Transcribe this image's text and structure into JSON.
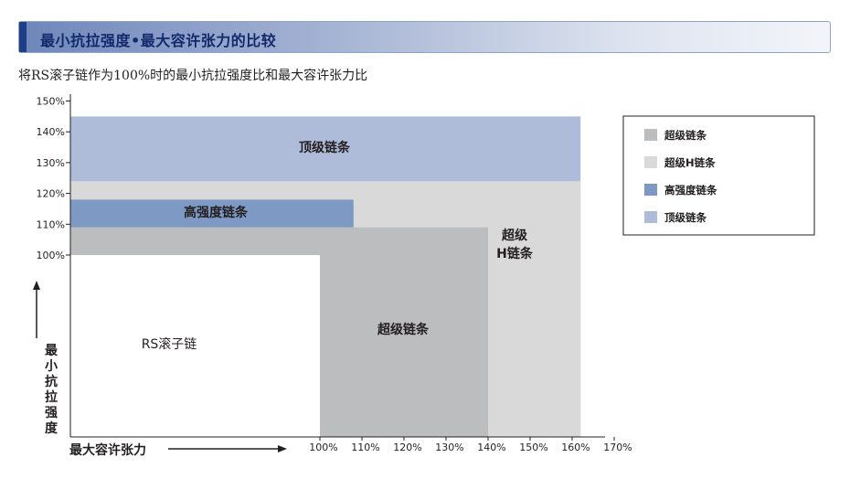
{
  "header": {
    "title": "最小抗拉强度•最大容许张力的比较"
  },
  "subtitle": "将RS滚子链作为100%时的最小抗拉强度比和最大容许张力比",
  "chart_data": {
    "type": "area",
    "xlabel": "最大容许张力",
    "ylabel": "最小抗拉强度",
    "x_ticks": [
      "100%",
      "110%",
      "120%",
      "130%",
      "140%",
      "150%",
      "160%",
      "170%"
    ],
    "y_ticks": [
      "150%",
      "140%",
      "130%",
      "120%",
      "110%",
      "100%"
    ],
    "series": [
      {
        "name": "顶级链条",
        "label": "顶级链条",
        "color": "#aebcd9",
        "max_allowable_tension": 162,
        "min_tensile_strength": 145
      },
      {
        "name": "超级H链条",
        "label": "超级\nH链条",
        "color": "#d9d9d9",
        "max_allowable_tension": 162,
        "min_tensile_strength": 124
      },
      {
        "name": "高强度链条",
        "label": "高强度链条",
        "color": "#7f99c5",
        "max_allowable_tension": 108,
        "min_tensile_strength": 118
      },
      {
        "name": "超级链条",
        "label": "超级链条",
        "color": "#bcbdbf",
        "max_allowable_tension": 140,
        "min_tensile_strength": 109
      },
      {
        "name": "RS滚子链",
        "label": "RS滚子链",
        "color": "#ffffff",
        "max_allowable_tension": 100,
        "min_tensile_strength": 100
      }
    ],
    "legend": {
      "position": "right",
      "items": [
        {
          "label": "超级链条",
          "color": "#bcbdbf"
        },
        {
          "label": "超级H链条",
          "color": "#d9d9d9"
        },
        {
          "label": "高强度链条",
          "color": "#7f99c5"
        },
        {
          "label": "顶级链条",
          "color": "#aebcd9"
        }
      ]
    }
  }
}
